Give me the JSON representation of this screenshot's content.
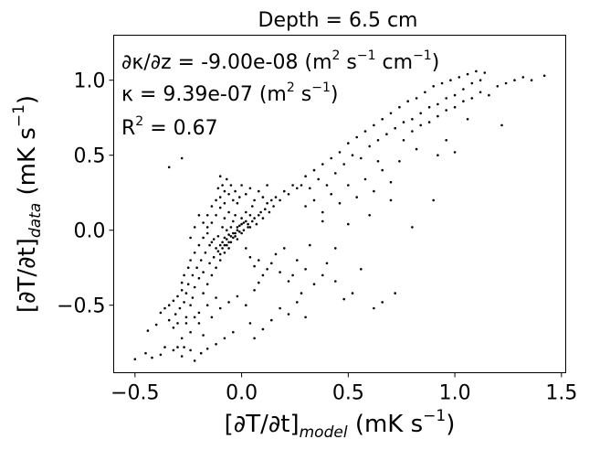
{
  "chart_data": {
    "type": "scatter",
    "title": "Depth = 6.5 cm",
    "xlabel": {
      "main": "[∂T/∂t]",
      "sub": "model",
      "units": " (mK s",
      "sup": "−1",
      "close": ")"
    },
    "ylabel": {
      "main": "[∂T/∂t]",
      "sub": "data",
      "units": " (mK s",
      "sup": "−1",
      "close": ")"
    },
    "xlim": [
      -0.6,
      1.52
    ],
    "ylim": [
      -0.95,
      1.3
    ],
    "xticks": [
      -0.5,
      0.0,
      0.5,
      1.0,
      1.5
    ],
    "xtick_labels": [
      "−0.5",
      "0.0",
      "0.5",
      "1.0",
      "1.5"
    ],
    "yticks": [
      -0.5,
      0.0,
      0.5,
      1.0
    ],
    "ytick_labels": [
      "−0.5",
      "0.0",
      "0.5",
      "1.0"
    ],
    "grid": false,
    "marker_color": "#000000",
    "annotations": {
      "line1": {
        "a": "∂κ/∂z = -9.00e-08 (m",
        "sup1": "2",
        "b": " s",
        "sup2": "−1",
        "c": " cm",
        "sup3": "−1",
        "d": ")"
      },
      "line2": {
        "a": "κ = 9.39e-07 (m",
        "sup1": "2",
        "b": " s",
        "sup2": "−1",
        "c": ")"
      },
      "line3": {
        "a": "R",
        "sup1": "2",
        "b": " = 0.67"
      }
    },
    "points": [
      [
        -0.5,
        -0.86
      ],
      [
        -0.45,
        -0.82
      ],
      [
        -0.42,
        -0.85
      ],
      [
        -0.38,
        -0.83
      ],
      [
        -0.36,
        -0.78
      ],
      [
        -0.32,
        -0.8
      ],
      [
        -0.3,
        -0.78
      ],
      [
        -0.28,
        -0.84
      ],
      [
        -0.27,
        -0.78
      ],
      [
        -0.24,
        -0.8
      ],
      [
        -0.22,
        -0.87
      ],
      [
        -0.19,
        -0.82
      ],
      [
        -0.16,
        -0.79
      ],
      [
        -0.12,
        -0.76
      ],
      [
        -0.08,
        -0.72
      ],
      [
        -0.04,
        -0.68
      ],
      [
        0.04,
        -0.62
      ],
      [
        -0.44,
        -0.67
      ],
      [
        -0.4,
        -0.63
      ],
      [
        -0.38,
        -0.55
      ],
      [
        -0.36,
        -0.52
      ],
      [
        -0.34,
        -0.5
      ],
      [
        -0.34,
        -0.6
      ],
      [
        -0.32,
        -0.47
      ],
      [
        -0.31,
        -0.56
      ],
      [
        -0.3,
        -0.44
      ],
      [
        -0.3,
        -0.62
      ],
      [
        -0.29,
        -0.52
      ],
      [
        -0.28,
        -0.4
      ],
      [
        -0.28,
        -0.35
      ],
      [
        -0.27,
        -0.48
      ],
      [
        -0.27,
        -0.3
      ],
      [
        -0.26,
        -0.58
      ],
      [
        -0.26,
        -0.42
      ],
      [
        -0.25,
        -0.25
      ],
      [
        -0.25,
        -0.36
      ],
      [
        -0.24,
        -0.2
      ],
      [
        -0.24,
        -0.5
      ],
      [
        -0.23,
        -0.3
      ],
      [
        -0.23,
        -0.45
      ],
      [
        -0.22,
        -0.15
      ],
      [
        -0.22,
        -0.38
      ],
      [
        -0.21,
        -0.25
      ],
      [
        -0.2,
        -0.55
      ],
      [
        -0.2,
        -0.1
      ],
      [
        -0.2,
        -0.32
      ],
      [
        -0.19,
        -0.2
      ],
      [
        -0.18,
        -0.42
      ],
      [
        -0.18,
        -0.05
      ],
      [
        -0.18,
        -0.28
      ],
      [
        -0.17,
        -0.15
      ],
      [
        -0.16,
        -0.36
      ],
      [
        -0.16,
        0.02
      ],
      [
        -0.15,
        -0.22
      ],
      [
        -0.15,
        -0.1
      ],
      [
        -0.14,
        -0.3
      ],
      [
        -0.14,
        0.05
      ],
      [
        -0.13,
        -0.18
      ],
      [
        -0.13,
        -0.06
      ],
      [
        -0.12,
        -0.25
      ],
      [
        -0.12,
        0.1
      ],
      [
        -0.11,
        -0.14
      ],
      [
        -0.11,
        -0.04
      ],
      [
        -0.1,
        -0.2
      ],
      [
        -0.1,
        0.15
      ],
      [
        -0.1,
        -0.1
      ],
      [
        -0.09,
        -0.08
      ],
      [
        -0.09,
        0.02
      ],
      [
        -0.08,
        -0.15
      ],
      [
        -0.08,
        -0.05
      ],
      [
        -0.08,
        0.08
      ],
      [
        -0.07,
        -0.1
      ],
      [
        -0.07,
        0.0
      ],
      [
        -0.06,
        -0.12
      ],
      [
        -0.06,
        -0.03
      ],
      [
        -0.06,
        0.12
      ],
      [
        -0.05,
        -0.08
      ],
      [
        -0.05,
        0.02
      ],
      [
        -0.04,
        -0.05
      ],
      [
        -0.04,
        0.06
      ],
      [
        -0.03,
        -0.02
      ],
      [
        -0.03,
        0.1
      ],
      [
        -0.02,
        0.0
      ],
      [
        -0.02,
        -0.06
      ],
      [
        -0.01,
        0.03
      ],
      [
        0.0,
        0.08
      ],
      [
        0.0,
        -0.02
      ],
      [
        0.01,
        0.05
      ],
      [
        0.02,
        0.12
      ],
      [
        0.03,
        0.02
      ],
      [
        0.04,
        0.1
      ],
      [
        0.05,
        0.16
      ],
      [
        -0.32,
        -0.65
      ],
      [
        -0.28,
        -0.72
      ],
      [
        -0.24,
        -0.68
      ],
      [
        -0.2,
        -0.62
      ],
      [
        -0.18,
        -0.7
      ],
      [
        -0.14,
        -0.58
      ],
      [
        -0.1,
        -0.52
      ],
      [
        -0.06,
        -0.48
      ],
      [
        -0.02,
        -0.44
      ],
      [
        0.02,
        -0.5
      ],
      [
        0.06,
        -0.4
      ],
      [
        0.08,
        -0.35
      ],
      [
        -0.12,
        -0.45
      ],
      [
        -0.16,
        -0.5
      ],
      [
        -0.22,
        -0.58
      ],
      [
        -0.26,
        -0.62
      ],
      [
        -0.12,
        0.2
      ],
      [
        -0.11,
        0.28
      ],
      [
        -0.1,
        0.36
      ],
      [
        -0.1,
        0.22
      ],
      [
        -0.09,
        0.3
      ],
      [
        -0.08,
        0.18
      ],
      [
        -0.08,
        0.26
      ],
      [
        -0.07,
        0.34
      ],
      [
        -0.06,
        0.24
      ],
      [
        -0.05,
        0.3
      ],
      [
        -0.04,
        0.2
      ],
      [
        -0.03,
        0.26
      ],
      [
        -0.02,
        0.18
      ],
      [
        -0.01,
        0.22
      ],
      [
        0.0,
        0.3
      ],
      [
        0.02,
        0.24
      ],
      [
        0.04,
        0.28
      ],
      [
        0.06,
        0.2
      ],
      [
        0.08,
        0.26
      ],
      [
        0.1,
        0.22
      ],
      [
        0.12,
        0.3
      ],
      [
        -0.14,
        0.16
      ],
      [
        -0.16,
        0.1
      ],
      [
        -0.18,
        0.05
      ],
      [
        -0.2,
        0.1
      ],
      [
        -0.22,
        0.02
      ],
      [
        -0.24,
        -0.05
      ],
      [
        -0.16,
        -0.02
      ],
      [
        -0.14,
        -0.08
      ],
      [
        -0.12,
        -0.12
      ],
      [
        -0.1,
        -0.16
      ],
      [
        -0.09,
        -0.12
      ],
      [
        -0.08,
        -0.1
      ],
      [
        -0.07,
        -0.06
      ],
      [
        -0.06,
        -0.08
      ],
      [
        -0.05,
        -0.04
      ],
      [
        -0.04,
        -0.02
      ],
      [
        -0.03,
        -0.04
      ],
      [
        -0.02,
        0.02
      ],
      [
        -0.01,
        -0.01
      ],
      [
        0.0,
        0.04
      ],
      [
        0.01,
        0.0
      ],
      [
        0.02,
        0.06
      ],
      [
        0.03,
        0.04
      ],
      [
        0.04,
        0.02
      ],
      [
        0.05,
        0.06
      ],
      [
        0.06,
        0.08
      ],
      [
        0.07,
        0.04
      ],
      [
        0.08,
        0.1
      ],
      [
        0.09,
        0.12
      ],
      [
        0.1,
        0.08
      ],
      [
        0.11,
        0.14
      ],
      [
        0.12,
        0.18
      ],
      [
        0.13,
        0.12
      ],
      [
        0.14,
        0.2
      ],
      [
        0.15,
        0.16
      ],
      [
        0.16,
        0.22
      ],
      [
        0.18,
        0.2
      ],
      [
        0.2,
        0.26
      ],
      [
        0.22,
        0.24
      ],
      [
        0.24,
        0.3
      ],
      [
        0.26,
        0.28
      ],
      [
        0.02,
        -0.12
      ],
      [
        0.04,
        -0.18
      ],
      [
        0.06,
        -0.24
      ],
      [
        0.08,
        -0.2
      ],
      [
        0.1,
        -0.3
      ],
      [
        0.12,
        -0.26
      ],
      [
        0.14,
        -0.22
      ],
      [
        0.16,
        -0.16
      ],
      [
        0.18,
        -0.28
      ],
      [
        0.2,
        -0.12
      ],
      [
        0.22,
        -0.34
      ],
      [
        0.24,
        -0.3
      ],
      [
        0.26,
        -0.2
      ],
      [
        0.28,
        -0.42
      ],
      [
        0.3,
        -0.26
      ],
      [
        0.32,
        -0.1
      ],
      [
        0.34,
        -0.36
      ],
      [
        0.38,
        -0.3
      ],
      [
        0.4,
        -0.22
      ],
      [
        0.44,
        -0.34
      ],
      [
        0.48,
        -0.46
      ],
      [
        0.52,
        -0.42
      ],
      [
        0.56,
        -0.26
      ],
      [
        0.62,
        -0.52
      ],
      [
        0.66,
        -0.48
      ],
      [
        0.72,
        -0.42
      ],
      [
        0.06,
        -0.72
      ],
      [
        0.1,
        -0.66
      ],
      [
        0.14,
        -0.6
      ],
      [
        0.18,
        -0.52
      ],
      [
        0.22,
        -0.56
      ],
      [
        0.26,
        -0.48
      ],
      [
        0.3,
        -0.58
      ],
      [
        0.28,
        0.3
      ],
      [
        0.3,
        0.36
      ],
      [
        0.32,
        0.28
      ],
      [
        0.34,
        0.4
      ],
      [
        0.36,
        0.34
      ],
      [
        0.38,
        0.44
      ],
      [
        0.4,
        0.3
      ],
      [
        0.42,
        0.48
      ],
      [
        0.44,
        0.38
      ],
      [
        0.46,
        0.52
      ],
      [
        0.48,
        0.44
      ],
      [
        0.5,
        0.58
      ],
      [
        0.52,
        0.5
      ],
      [
        0.54,
        0.62
      ],
      [
        0.56,
        0.48
      ],
      [
        0.58,
        0.66
      ],
      [
        0.6,
        0.56
      ],
      [
        0.62,
        0.7
      ],
      [
        0.64,
        0.6
      ],
      [
        0.66,
        0.74
      ],
      [
        0.68,
        0.64
      ],
      [
        0.7,
        0.78
      ],
      [
        0.72,
        0.68
      ],
      [
        0.74,
        0.82
      ],
      [
        0.76,
        0.72
      ],
      [
        0.78,
        0.86
      ],
      [
        0.8,
        0.74
      ],
      [
        0.82,
        0.88
      ],
      [
        0.84,
        0.78
      ],
      [
        0.86,
        0.92
      ],
      [
        0.88,
        0.82
      ],
      [
        0.9,
        0.96
      ],
      [
        0.92,
        0.84
      ],
      [
        0.94,
        0.98
      ],
      [
        0.96,
        0.88
      ],
      [
        0.98,
        1.0
      ],
      [
        1.0,
        0.9
      ],
      [
        1.02,
        1.02
      ],
      [
        1.04,
        0.94
      ],
      [
        1.06,
        1.04
      ],
      [
        1.08,
        0.98
      ],
      [
        1.1,
        1.06
      ],
      [
        1.12,
        1.0
      ],
      [
        1.14,
        1.05
      ],
      [
        0.3,
        0.16
      ],
      [
        0.34,
        0.2
      ],
      [
        0.38,
        0.12
      ],
      [
        0.42,
        0.24
      ],
      [
        0.46,
        0.18
      ],
      [
        0.5,
        0.3
      ],
      [
        0.54,
        0.22
      ],
      [
        0.58,
        0.34
      ],
      [
        0.62,
        0.26
      ],
      [
        0.66,
        0.4
      ],
      [
        0.7,
        0.32
      ],
      [
        0.74,
        0.46
      ],
      [
        0.76,
        0.6
      ],
      [
        0.8,
        0.66
      ],
      [
        0.84,
        0.7
      ],
      [
        0.88,
        0.72
      ],
      [
        0.92,
        0.76
      ],
      [
        0.96,
        0.8
      ],
      [
        1.0,
        0.82
      ],
      [
        1.04,
        0.86
      ],
      [
        1.08,
        0.88
      ],
      [
        1.12,
        0.92
      ],
      [
        1.16,
        0.9
      ],
      [
        1.2,
        0.96
      ],
      [
        1.24,
        0.98
      ],
      [
        1.28,
        1.0
      ],
      [
        1.32,
        1.02
      ],
      [
        1.36,
        1.0
      ],
      [
        1.42,
        1.03
      ],
      [
        -0.34,
        0.42
      ],
      [
        -0.28,
        0.48
      ],
      [
        0.38,
        0.06
      ],
      [
        0.44,
        -0.12
      ],
      [
        0.5,
        0.04
      ],
      [
        0.6,
        0.1
      ],
      [
        0.8,
        0.02
      ],
      [
        0.9,
        0.2
      ],
      [
        0.7,
        0.2
      ],
      [
        0.82,
        0.54
      ],
      [
        0.64,
        0.46
      ],
      [
        0.92,
        0.5
      ],
      [
        0.96,
        0.6
      ],
      [
        1.0,
        0.52
      ],
      [
        1.06,
        0.74
      ],
      [
        1.22,
        0.7
      ]
    ]
  }
}
